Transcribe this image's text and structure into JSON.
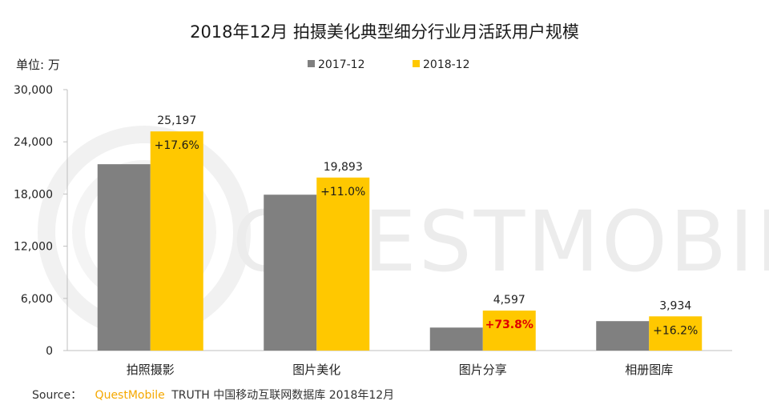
{
  "chart_data": {
    "type": "bar",
    "title": "2018年12月 拍摄美化典型细分行业月活跃用户规模",
    "unit_label": "单位: 万",
    "categories": [
      "拍照摄影",
      "图片美化",
      "图片分享",
      "相册图库"
    ],
    "series": [
      {
        "name": "2017-12",
        "color": "#808080",
        "values": [
          21427,
          17922,
          2645,
          3386
        ]
      },
      {
        "name": "2018-12",
        "color": "#FFC800",
        "values": [
          25197,
          19893,
          4597,
          3934
        ]
      }
    ],
    "value_labels": [
      "25,197",
      "19,893",
      "4,597",
      "3,934"
    ],
    "growth_labels": [
      "+17.6%",
      "+11.0%",
      "+73.8%",
      "+16.2%"
    ],
    "growth_highlight": [
      false,
      false,
      true,
      false
    ],
    "highlight_color": "#E00000",
    "ylim": [
      0,
      30000
    ],
    "yticks": [
      0,
      6000,
      12000,
      18000,
      24000,
      30000
    ],
    "ytick_labels": [
      "0",
      "6,000",
      "12,000",
      "18,000",
      "24,000",
      "30,000"
    ],
    "grid": false,
    "legend_position": "top"
  },
  "source": {
    "prefix": "Source：",
    "brand": "QuestMobile",
    "brand_color": "#F5A800",
    "rest": "TRUTH 中国移动互联网数据库 2018年12月"
  },
  "watermark": {
    "text": "QUESTMOBILE",
    "color": "#ECECEC"
  }
}
